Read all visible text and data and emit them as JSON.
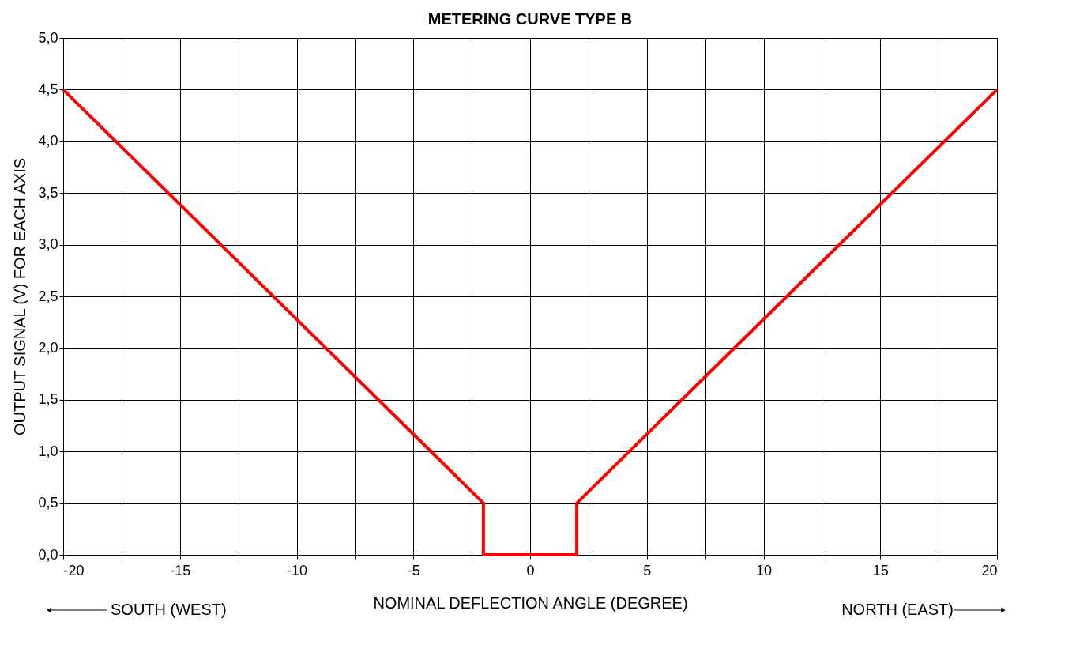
{
  "chart_data": {
    "type": "line",
    "title": "METERING CURVE TYPE B",
    "xlabel": "NOMINAL DEFLECTION ANGLE (DEGREE)",
    "ylabel": "OUTPUT SIGNAL (V) FOR EACH AXIS",
    "x": [
      -20,
      -2,
      -2,
      2,
      2,
      20
    ],
    "series": [
      {
        "color": "#ff0000",
        "values": [
          4.5,
          0.5,
          0,
          0,
          0.5,
          4.5
        ]
      }
    ],
    "xlim": [
      -20,
      20
    ],
    "xticks": [
      -20,
      {
        "value": -17.5,
        "label": null
      },
      -15,
      {
        "value": -12.5,
        "label": null
      },
      -10,
      {
        "value": -7.5,
        "label": null
      },
      -5,
      {
        "value": -2.5,
        "label": null
      },
      0,
      {
        "value": 2.5,
        "label": null
      },
      5,
      {
        "value": 7.5,
        "label": null
      },
      10,
      {
        "value": 12.5,
        "label": null
      },
      15,
      {
        "value": 17.5,
        "label": null
      },
      20
    ],
    "ylim": [
      0,
      5
    ],
    "yticks": [
      {
        "value": 0,
        "label": "0,0"
      },
      {
        "value": 0.5,
        "label": "0,5"
      },
      {
        "value": 1,
        "label": "1,0"
      },
      {
        "value": 1.5,
        "label": "1,5"
      },
      {
        "value": 2,
        "label": "2,0"
      },
      {
        "value": 2.5,
        "label": "2,5"
      },
      {
        "value": 3,
        "label": "3,0"
      },
      {
        "value": 3.5,
        "label": "3,5"
      },
      {
        "value": 4,
        "label": "4,0"
      },
      {
        "value": 4.5,
        "label": "4,5"
      },
      {
        "value": 5,
        "label": "5,0"
      }
    ],
    "annotations": [
      "SOUTH (WEST)",
      "NORTH (EAST)"
    ],
    "grid": true,
    "legend": false,
    "marker": "none",
    "line_style": "solid"
  }
}
